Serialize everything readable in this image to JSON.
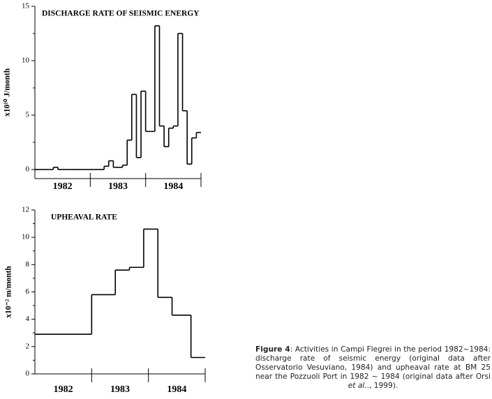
{
  "chart_data": [
    {
      "type": "step",
      "title": "DISCHARGE RATE OF SEISMIC ENERGY",
      "ylabel": "x10¹⁰ J/month",
      "categories": [
        "1982",
        "1983",
        "1984"
      ],
      "x": [
        0,
        1,
        2,
        3,
        4,
        5,
        6,
        7,
        8,
        9,
        10,
        11,
        12,
        13,
        14,
        15,
        16,
        17,
        18,
        19,
        20,
        21,
        22,
        23,
        24,
        25,
        26,
        27,
        28,
        29,
        30,
        31,
        32,
        33,
        34,
        35
      ],
      "values": [
        0,
        0,
        0,
        0,
        0.2,
        0,
        0,
        0,
        0,
        0,
        0,
        0,
        0,
        0,
        0,
        0.3,
        0.8,
        0.2,
        0.2,
        0.4,
        2.7,
        6.9,
        1.1,
        7.2,
        3.5,
        3.5,
        13.2,
        4.0,
        2.1,
        3.8,
        4.0,
        12.5,
        5.4,
        0.5,
        2.9,
        3.4
      ],
      "xlim": [
        0,
        36
      ],
      "ylim": [
        0,
        15
      ],
      "yticks": [
        0,
        5,
        10,
        15
      ],
      "color": "#000000"
    },
    {
      "type": "step",
      "title": "UPHEAVAL RATE",
      "ylabel": "x10⁻² m/month",
      "categories": [
        "1982",
        "1983",
        "1984"
      ],
      "x": [
        0,
        12,
        17,
        20,
        23,
        26,
        29,
        33
      ],
      "values": [
        2.9,
        5.8,
        7.6,
        7.8,
        10.6,
        5.6,
        4.3,
        1.2
      ],
      "xlim": [
        0,
        36
      ],
      "ylim": [
        0,
        12
      ],
      "yticks": [
        0,
        2,
        4,
        6,
        8,
        10,
        12
      ],
      "color": "#000000"
    }
  ],
  "caption": {
    "label": "Figure 4",
    "text": ": Activities in Campi Flegrei in the period 1982~1984: discharge rate of seismic energy (original data after Osservatorio Vesuviano, 1984) and upheaval rate at BM 25 near the Pozzuoli Port in 1982 ~ 1984 (original data after Orsi ",
    "italic": "et al.",
    "end": "., 1999)."
  }
}
